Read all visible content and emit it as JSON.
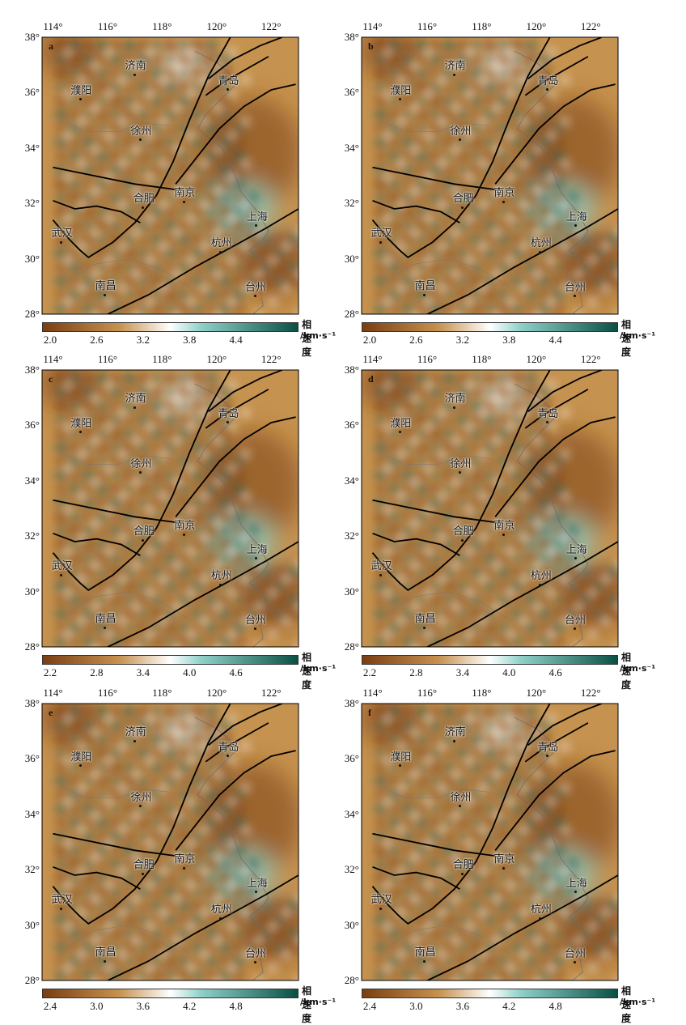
{
  "colors": {
    "low": "#7a3e12",
    "midlow": "#c6924f",
    "mid": "#ffffff",
    "midhigh": "#8fd1c9",
    "high": "#0a4f44",
    "fault": "#000000"
  },
  "xticks": [
    "114°",
    "116°",
    "118°",
    "120°",
    "122°"
  ],
  "yticks": [
    "38°",
    "36°",
    "34°",
    "32°",
    "30°",
    "28°"
  ],
  "colorbar_title": "相速度",
  "colorbar_unit": "/km·s⁻¹",
  "cities": [
    {
      "id": "jinan",
      "name": "济南",
      "lon": 117.0,
      "lat": 36.65
    },
    {
      "id": "puyang",
      "name": "濮阳",
      "lon": 115.0,
      "lat": 35.75
    },
    {
      "id": "qingdao",
      "name": "青岛",
      "lon": 120.4,
      "lat": 36.1
    },
    {
      "id": "xuzhou",
      "name": "徐州",
      "lon": 117.2,
      "lat": 34.3
    },
    {
      "id": "hefei",
      "name": "合肥",
      "lon": 117.3,
      "lat": 31.85
    },
    {
      "id": "nanjing",
      "name": "南京",
      "lon": 118.8,
      "lat": 32.05
    },
    {
      "id": "shanghai",
      "name": "上海",
      "lon": 121.45,
      "lat": 31.2
    },
    {
      "id": "wuhan",
      "name": "武汉",
      "lon": 114.3,
      "lat": 30.6
    },
    {
      "id": "hangzhou",
      "name": "杭州",
      "lon": 120.15,
      "lat": 30.25
    },
    {
      "id": "nanchang",
      "name": "南昌",
      "lon": 115.9,
      "lat": 28.7
    },
    {
      "id": "taizhou",
      "name": "台州",
      "lon": 121.4,
      "lat": 28.65
    }
  ],
  "panels": [
    {
      "label": "a",
      "ticks": [
        "2.0",
        "2.6",
        "3.2",
        "3.8",
        "4.4"
      ]
    },
    {
      "label": "b",
      "ticks": [
        "2.0",
        "2.6",
        "3.2",
        "3.8",
        "4.4"
      ]
    },
    {
      "label": "c",
      "ticks": [
        "2.2",
        "2.8",
        "3.4",
        "4.0",
        "4.6"
      ]
    },
    {
      "label": "d",
      "ticks": [
        "2.2",
        "2.8",
        "3.4",
        "4.0",
        "4.6"
      ]
    },
    {
      "label": "e",
      "ticks": [
        "2.4",
        "3.0",
        "3.6",
        "4.2",
        "4.8"
      ]
    },
    {
      "label": "f",
      "ticks": [
        "2.4",
        "3.0",
        "3.6",
        "4.2",
        "4.8"
      ]
    }
  ]
}
